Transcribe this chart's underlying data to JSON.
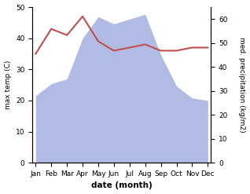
{
  "months": [
    "Jan",
    "Feb",
    "Mar",
    "Apr",
    "May",
    "Jun",
    "Jul",
    "Aug",
    "Sep",
    "Oct",
    "Nov",
    "Dec"
  ],
  "x": [
    0,
    1,
    2,
    3,
    4,
    5,
    6,
    7,
    8,
    9,
    10,
    11
  ],
  "precipitation": [
    28,
    33,
    35,
    52,
    61,
    58,
    60,
    62,
    45,
    32,
    27,
    26
  ],
  "temperature": [
    35,
    43,
    41,
    47,
    39,
    36,
    37,
    38,
    36,
    36,
    37,
    37
  ],
  "precip_color": "#aab4e0",
  "temp_color": "#c0504d",
  "ylabel_left": "max temp (C)",
  "ylabel_right": "med. precipitation (kg/m2)",
  "xlabel": "date (month)",
  "ylim_left": [
    0,
    50
  ],
  "ylim_right": [
    0,
    65
  ],
  "yticks_left": [
    0,
    10,
    20,
    30,
    40,
    50
  ],
  "yticks_right": [
    0,
    10,
    20,
    30,
    40,
    50,
    60
  ],
  "figsize": [
    3.18,
    2.47
  ],
  "dpi": 100
}
